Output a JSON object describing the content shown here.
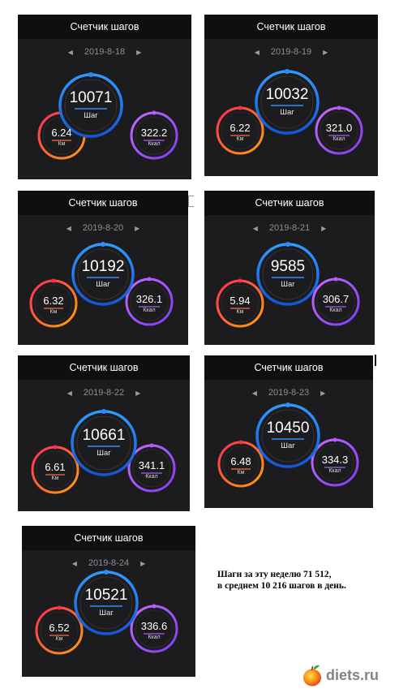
{
  "cards": [
    {
      "title": "Счетчик шагов",
      "date": "2019-8-18",
      "steps": "10071",
      "steps_label": "Шаг",
      "km": "6.24",
      "km_label": "Км",
      "kcal": "322.2",
      "kcal_label": "Ккал"
    },
    {
      "title": "Счетчик шагов",
      "date": "2019-8-19",
      "steps": "10032",
      "steps_label": "Шаг",
      "km": "6.22",
      "km_label": "Км",
      "kcal": "321.0",
      "kcal_label": "Ккал"
    },
    {
      "title": "Счетчик шагов",
      "date": "2019-8-20",
      "steps": "10192",
      "steps_label": "Шаг",
      "km": "6.32",
      "km_label": "Км",
      "kcal": "326.1",
      "kcal_label": "Ккал"
    },
    {
      "title": "Счетчик шагов",
      "date": "2019-8-21",
      "steps": "9585",
      "steps_label": "Шаг",
      "km": "5.94",
      "km_label": "Км",
      "kcal": "306.7",
      "kcal_label": "Ккал"
    },
    {
      "title": "Счетчик шагов",
      "date": "2019-8-22",
      "steps": "10661",
      "steps_label": "Шаг",
      "km": "6.61",
      "km_label": "Км",
      "kcal": "341.1",
      "kcal_label": "Ккал"
    },
    {
      "title": "Счетчик шагов",
      "date": "2019-8-23",
      "steps": "10450",
      "steps_label": "Шаг",
      "km": "6.48",
      "km_label": "Км",
      "kcal": "334.3",
      "kcal_label": "Ккал"
    },
    {
      "title": "Счетчик шагов",
      "date": "2019-8-24",
      "steps": "10521",
      "steps_label": "Шаг",
      "km": "6.52",
      "km_label": "Км",
      "kcal": "336.6",
      "kcal_label": "Ккал"
    }
  ],
  "caption": {
    "line1": "Шаги за эту неделю 71 512,",
    "line2": "в среднем  10 216 шагов в день."
  },
  "brand": {
    "text": "diets.ru",
    "icon": "apple-logo-icon"
  },
  "colors": {
    "card_bg": "#1c1c1e",
    "steps_ring": "#1e7bf0",
    "km_ring_start": "#ff3b30",
    "km_ring_end": "#ff9500",
    "kcal_ring": "#9b59f5",
    "accent_blue": "#2f8bff"
  }
}
